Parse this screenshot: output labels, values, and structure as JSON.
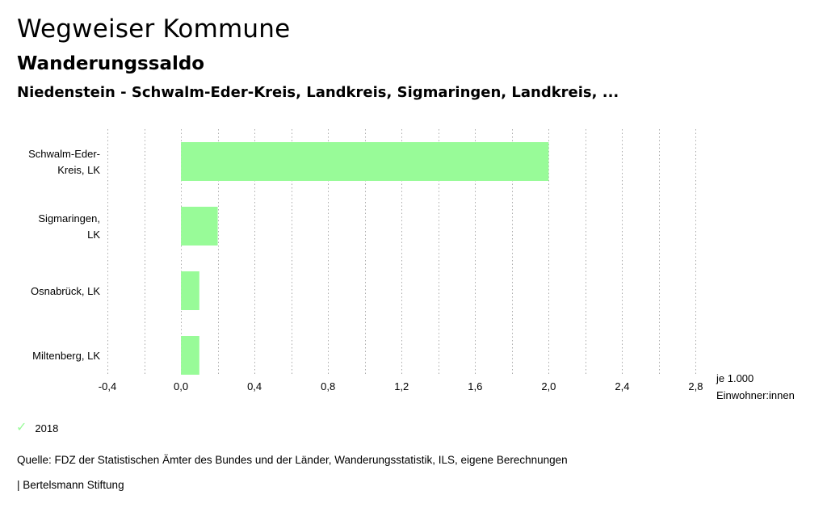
{
  "header": {
    "title": "Wegweiser Kommune",
    "subtitle": "Wanderungssaldo",
    "region_line": "Niedenstein - Schwalm-Eder-Kreis, Landkreis, Sigmaringen, Landkreis, ..."
  },
  "chart_data": {
    "type": "bar",
    "orientation": "horizontal",
    "categories": [
      [
        "Schwalm-Eder-",
        "Kreis, LK"
      ],
      [
        "Sigmaringen,",
        "LK"
      ],
      [
        "Osnabrück, LK"
      ],
      [
        "Miltenberg, LK"
      ]
    ],
    "series": [
      {
        "name": "2018",
        "values": [
          2.0,
          0.2,
          0.1,
          0.1
        ],
        "color": "#98fb98"
      }
    ],
    "xlim": [
      -0.4,
      3.0
    ],
    "ticks": [
      -0.4,
      0.0,
      0.4,
      0.8,
      1.2,
      1.6,
      2.0,
      2.4,
      2.8
    ],
    "tick_labels": [
      "-0,4",
      "0,0",
      "0,4",
      "0,8",
      "1,2",
      "1,6",
      "2,0",
      "2,4",
      "2,8"
    ],
    "grid_step": 0.2,
    "unit_label": [
      "je 1.000",
      "Einwohner:innen"
    ],
    "grid": true,
    "grid_color": "#aaaaaa"
  },
  "legend": {
    "items": [
      {
        "label": "2018",
        "color": "#98fb98",
        "icon": "check-icon"
      }
    ]
  },
  "footer": {
    "source": "Quelle: FDZ der Statistischen Ämter des Bundes und der Länder, Wanderungsstatistik, ILS, eigene Berechnungen",
    "credit": "| Bertelsmann Stiftung"
  }
}
